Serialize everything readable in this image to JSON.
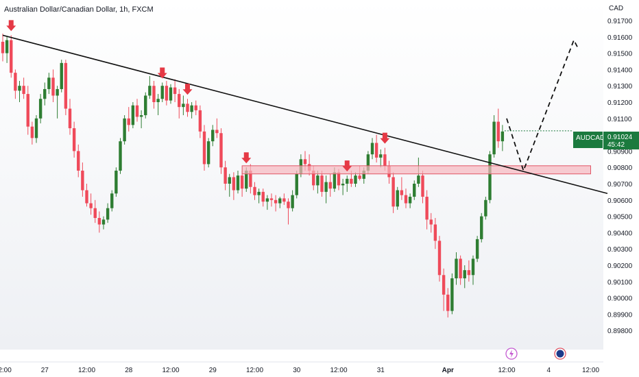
{
  "chart_data": {
    "type": "candlestick",
    "title": "Australian Dollar/Canadian Dollar, 1h, FXCM",
    "currency_label": "CAD",
    "ylim": [
      0.8975,
      0.9175
    ],
    "y_ticks": [
      "0.91700",
      "0.91600",
      "0.91500",
      "0.91400",
      "0.91300",
      "0.91200",
      "0.91100",
      "0.91000",
      "0.90900",
      "0.90800",
      "0.90700",
      "0.90600",
      "0.90500",
      "0.90400",
      "0.90300",
      "0.90200",
      "0.90100",
      "0.90000",
      "0.89900",
      "0.89800"
    ],
    "x_ticks": [
      {
        "label": "2:00",
        "x": 0.5
      },
      {
        "label": "27",
        "x": 10
      },
      {
        "label": "12:00",
        "x": 20
      },
      {
        "label": "28",
        "x": 30
      },
      {
        "label": "12:00",
        "x": 40
      },
      {
        "label": "29",
        "x": 50
      },
      {
        "label": "12:00",
        "x": 60
      },
      {
        "label": "30",
        "x": 70
      },
      {
        "label": "12:00",
        "x": 80
      },
      {
        "label": "31",
        "x": 90
      },
      {
        "label": "Apr",
        "x": 106,
        "bold": true
      },
      {
        "label": "12:00",
        "x": 120
      },
      {
        "label": "4",
        "x": 130
      },
      {
        "label": "12:00",
        "x": 140
      }
    ],
    "candles": [
      [
        0.9157,
        0.9162,
        0.9145,
        0.915
      ],
      [
        0.915,
        0.916,
        0.9144,
        0.9158
      ],
      [
        0.9158,
        0.9161,
        0.9135,
        0.9138
      ],
      [
        0.9138,
        0.914,
        0.9122,
        0.9127
      ],
      [
        0.9127,
        0.9133,
        0.912,
        0.913
      ],
      [
        0.913,
        0.9135,
        0.9122,
        0.9125
      ],
      [
        0.9125,
        0.913,
        0.91,
        0.9105
      ],
      [
        0.9105,
        0.9108,
        0.9094,
        0.9098
      ],
      [
        0.9098,
        0.9112,
        0.9095,
        0.911
      ],
      [
        0.911,
        0.9125,
        0.9107,
        0.9122
      ],
      [
        0.9122,
        0.9132,
        0.9118,
        0.9128
      ],
      [
        0.9128,
        0.9138,
        0.9125,
        0.9135
      ],
      [
        0.9135,
        0.914,
        0.912,
        0.9124
      ],
      [
        0.9124,
        0.913,
        0.911,
        0.9128
      ],
      [
        0.9128,
        0.9146,
        0.9126,
        0.9144
      ],
      [
        0.9144,
        0.9146,
        0.9112,
        0.9116
      ],
      [
        0.9116,
        0.9122,
        0.91,
        0.9104
      ],
      [
        0.9104,
        0.9108,
        0.9086,
        0.909
      ],
      [
        0.909,
        0.9094,
        0.9074,
        0.9078
      ],
      [
        0.9078,
        0.9083,
        0.9062,
        0.9066
      ],
      [
        0.9066,
        0.907,
        0.9056,
        0.9058
      ],
      [
        0.9058,
        0.9064,
        0.9051,
        0.9055
      ],
      [
        0.9055,
        0.906,
        0.9046,
        0.9049
      ],
      [
        0.9049,
        0.9053,
        0.904,
        0.9045
      ],
      [
        0.9045,
        0.905,
        0.9042,
        0.9048
      ],
      [
        0.9048,
        0.9058,
        0.9046,
        0.9055
      ],
      [
        0.9055,
        0.9066,
        0.9053,
        0.9064
      ],
      [
        0.9064,
        0.908,
        0.9062,
        0.9078
      ],
      [
        0.9078,
        0.9098,
        0.9076,
        0.9096
      ],
      [
        0.9096,
        0.9112,
        0.9094,
        0.911
      ],
      [
        0.911,
        0.9117,
        0.9102,
        0.9106
      ],
      [
        0.9106,
        0.912,
        0.9104,
        0.9118
      ],
      [
        0.9118,
        0.9122,
        0.9108,
        0.9111
      ],
      [
        0.9111,
        0.9115,
        0.9104,
        0.9112
      ],
      [
        0.9112,
        0.9126,
        0.911,
        0.9124
      ],
      [
        0.9124,
        0.9136,
        0.9122,
        0.913
      ],
      [
        0.913,
        0.9133,
        0.9116,
        0.912
      ],
      [
        0.912,
        0.9125,
        0.9112,
        0.9122
      ],
      [
        0.9122,
        0.9132,
        0.912,
        0.913
      ],
      [
        0.913,
        0.9133,
        0.9118,
        0.9121
      ],
      [
        0.9121,
        0.9131,
        0.9119,
        0.9129
      ],
      [
        0.9129,
        0.9134,
        0.912,
        0.9125
      ],
      [
        0.9125,
        0.9128,
        0.911,
        0.9117
      ],
      [
        0.9117,
        0.9124,
        0.9112,
        0.9119
      ],
      [
        0.9119,
        0.9122,
        0.9111,
        0.9114
      ],
      [
        0.9114,
        0.912,
        0.911,
        0.9118
      ],
      [
        0.9118,
        0.9121,
        0.9112,
        0.9115
      ],
      [
        0.9115,
        0.9118,
        0.9098,
        0.9102
      ],
      [
        0.9102,
        0.9106,
        0.9078,
        0.9082
      ],
      [
        0.9082,
        0.9098,
        0.908,
        0.9096
      ],
      [
        0.9096,
        0.9106,
        0.9093,
        0.9103
      ],
      [
        0.9103,
        0.911,
        0.9098,
        0.9101
      ],
      [
        0.9101,
        0.9104,
        0.9076,
        0.908
      ],
      [
        0.908,
        0.9084,
        0.9066,
        0.907
      ],
      [
        0.907,
        0.9076,
        0.9062,
        0.9074
      ],
      [
        0.9074,
        0.9077,
        0.906,
        0.9066
      ],
      [
        0.9066,
        0.9078,
        0.9064,
        0.9075
      ],
      [
        0.9075,
        0.9078,
        0.9062,
        0.9067
      ],
      [
        0.9067,
        0.908,
        0.9065,
        0.9078
      ],
      [
        0.9078,
        0.9082,
        0.9064,
        0.9068
      ],
      [
        0.9068,
        0.9071,
        0.906,
        0.9063
      ],
      [
        0.9063,
        0.9067,
        0.9058,
        0.9065
      ],
      [
        0.9065,
        0.9067,
        0.9056,
        0.9059
      ],
      [
        0.9059,
        0.9063,
        0.9054,
        0.9061
      ],
      [
        0.9061,
        0.9064,
        0.9056,
        0.906
      ],
      [
        0.906,
        0.9063,
        0.9053,
        0.9058
      ],
      [
        0.9058,
        0.9062,
        0.9055,
        0.9061
      ],
      [
        0.9061,
        0.9064,
        0.9057,
        0.9059
      ],
      [
        0.9059,
        0.9061,
        0.9045,
        0.9055
      ],
      [
        0.9055,
        0.9066,
        0.9053,
        0.9063
      ],
      [
        0.9063,
        0.9078,
        0.9061,
        0.9076
      ],
      [
        0.9076,
        0.9088,
        0.9074,
        0.9085
      ],
      [
        0.9085,
        0.909,
        0.9078,
        0.9082
      ],
      [
        0.9082,
        0.9088,
        0.9075,
        0.9078
      ],
      [
        0.9078,
        0.9081,
        0.9066,
        0.9069
      ],
      [
        0.9069,
        0.9078,
        0.9064,
        0.9075
      ],
      [
        0.9075,
        0.9078,
        0.9062,
        0.9065
      ],
      [
        0.9065,
        0.9075,
        0.9058,
        0.9071
      ],
      [
        0.9071,
        0.9076,
        0.9062,
        0.9067
      ],
      [
        0.9067,
        0.908,
        0.9065,
        0.9077
      ],
      [
        0.9077,
        0.9079,
        0.9066,
        0.9069
      ],
      [
        0.9069,
        0.9073,
        0.9063,
        0.907
      ],
      [
        0.907,
        0.9075,
        0.9065,
        0.9073
      ],
      [
        0.9073,
        0.9078,
        0.9068,
        0.907
      ],
      [
        0.907,
        0.9077,
        0.9068,
        0.9075
      ],
      [
        0.9075,
        0.9081,
        0.9072,
        0.9073
      ],
      [
        0.9073,
        0.908,
        0.907,
        0.9078
      ],
      [
        0.9078,
        0.909,
        0.9076,
        0.9088
      ],
      [
        0.9088,
        0.9098,
        0.9085,
        0.9095
      ],
      [
        0.9095,
        0.91,
        0.9083,
        0.9086
      ],
      [
        0.9086,
        0.9091,
        0.908,
        0.9088
      ],
      [
        0.9088,
        0.9092,
        0.9078,
        0.9081
      ],
      [
        0.9081,
        0.9084,
        0.907,
        0.9074
      ],
      [
        0.9074,
        0.9077,
        0.9052,
        0.9056
      ],
      [
        0.9056,
        0.9068,
        0.9054,
        0.9066
      ],
      [
        0.9066,
        0.9074,
        0.906,
        0.9063
      ],
      [
        0.9063,
        0.9067,
        0.9055,
        0.9058
      ],
      [
        0.9058,
        0.9064,
        0.9055,
        0.9062
      ],
      [
        0.9062,
        0.9072,
        0.906,
        0.907
      ],
      [
        0.907,
        0.9086,
        0.9068,
        0.9075
      ],
      [
        0.9075,
        0.9078,
        0.9058,
        0.9062
      ],
      [
        0.9062,
        0.9066,
        0.9042,
        0.9048
      ],
      [
        0.9048,
        0.9052,
        0.904,
        0.9045
      ],
      [
        0.9045,
        0.9049,
        0.903,
        0.9035
      ],
      [
        0.9035,
        0.9038,
        0.901,
        0.9014
      ],
      [
        0.9014,
        0.9018,
        0.8992,
        0.9002
      ],
      [
        0.9002,
        0.9006,
        0.8988,
        0.8992
      ],
      [
        0.8992,
        0.9015,
        0.899,
        0.9012
      ],
      [
        0.9012,
        0.9028,
        0.9008,
        0.9024
      ],
      [
        0.9024,
        0.9026,
        0.9008,
        0.9012
      ],
      [
        0.9012,
        0.902,
        0.9006,
        0.9017
      ],
      [
        0.9017,
        0.9023,
        0.901,
        0.9014
      ],
      [
        0.9014,
        0.9026,
        0.9008,
        0.9024
      ],
      [
        0.9024,
        0.9038,
        0.9022,
        0.9036
      ],
      [
        0.9036,
        0.9052,
        0.9034,
        0.905
      ],
      [
        0.905,
        0.9062,
        0.9048,
        0.906
      ],
      [
        0.906,
        0.909,
        0.9058,
        0.9088
      ],
      [
        0.9088,
        0.9112,
        0.9086,
        0.9108
      ],
      [
        0.9108,
        0.9116,
        0.9092,
        0.9096
      ],
      [
        0.9096,
        0.9106,
        0.909,
        0.9102
      ]
    ],
    "last_price_label": {
      "symbol": "AUDCAD",
      "price": "0.91024",
      "countdown": "45:42",
      "price_value": 0.91024
    },
    "trendline": {
      "from": [
        0,
        0.9161
      ],
      "to": [
        144,
        0.9064
      ]
    },
    "zone": {
      "x_from": 57,
      "x_to": 140,
      "y_top": 0.9081,
      "y_bottom": 0.9076
    },
    "arrows_x": [
      2,
      38,
      44,
      58,
      82,
      91
    ],
    "projection": [
      [
        120,
        0.911
      ],
      [
        124,
        0.9078
      ],
      [
        136,
        0.9158
      ],
      [
        137,
        0.9153
      ]
    ],
    "colors": {
      "up": "#2e7d32",
      "down": "#ef4a5a",
      "badge": "#1b7a3e",
      "zone_fill": "#f6b6be",
      "zone_stroke": "#e05565",
      "arrow": "#e53945"
    }
  }
}
